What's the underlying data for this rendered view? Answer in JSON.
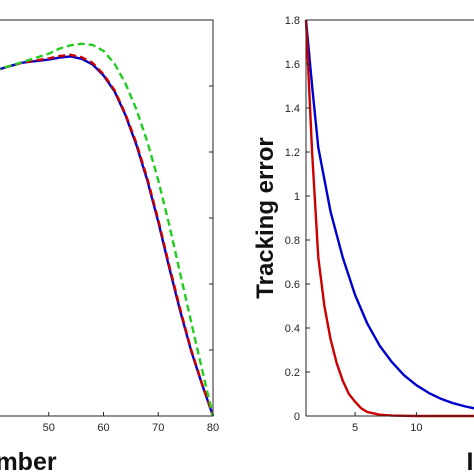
{
  "chart_data": [
    {
      "type": "line",
      "xlabel": "mber",
      "ylabel": "",
      "xlim": [
        40,
        80
      ],
      "ylim": [
        0,
        1
      ],
      "x_ticks": [
        "50",
        "60",
        "70",
        "80"
      ],
      "grid": false,
      "series": [
        {
          "color": "#0000cc",
          "style": "solid",
          "x": [
            40,
            45,
            50,
            52,
            54,
            56,
            58,
            60,
            62,
            64,
            66,
            68,
            70,
            72,
            74,
            76,
            78,
            80
          ],
          "y": [
            0.872,
            0.892,
            0.9,
            0.905,
            0.908,
            0.902,
            0.888,
            0.86,
            0.82,
            0.76,
            0.685,
            0.595,
            0.49,
            0.375,
            0.265,
            0.165,
            0.08,
            0.0
          ]
        },
        {
          "color": "#cc0000",
          "style": "dashed",
          "x": [
            40,
            45,
            50,
            52,
            54,
            56,
            58,
            60,
            62,
            64,
            66,
            68,
            70,
            72,
            74,
            76,
            78,
            80
          ],
          "y": [
            0.872,
            0.892,
            0.903,
            0.909,
            0.912,
            0.906,
            0.892,
            0.863,
            0.823,
            0.763,
            0.69,
            0.6,
            0.495,
            0.38,
            0.27,
            0.168,
            0.082,
            0.0
          ]
        },
        {
          "color": "#22cc22",
          "style": "dashed",
          "x": [
            40,
            45,
            50,
            52,
            54,
            56,
            58,
            60,
            62,
            64,
            66,
            68,
            70,
            72,
            74,
            76,
            78,
            80
          ],
          "y": [
            0.872,
            0.893,
            0.915,
            0.928,
            0.936,
            0.94,
            0.937,
            0.922,
            0.89,
            0.84,
            0.775,
            0.693,
            0.595,
            0.483,
            0.36,
            0.238,
            0.118,
            0.0
          ]
        }
      ]
    },
    {
      "type": "line",
      "xlabel": "I",
      "ylabel": "Tracking error",
      "xlim": [
        1,
        16
      ],
      "ylim": [
        0,
        1.8
      ],
      "x_ticks": [
        "5",
        "10"
      ],
      "y_ticks": [
        "0",
        "0.2",
        "0.4",
        "0.6",
        "0.8",
        "1",
        "1.2",
        "1.4",
        "1.6",
        "1.8"
      ],
      "grid": false,
      "series": [
        {
          "color": "#0000cc",
          "style": "solid",
          "x": [
            1,
            1.5,
            2,
            3,
            4,
            5,
            6,
            7,
            8,
            9,
            10,
            11,
            12,
            13,
            14,
            15,
            16
          ],
          "y": [
            1.8,
            1.5,
            1.22,
            0.93,
            0.72,
            0.55,
            0.42,
            0.32,
            0.245,
            0.185,
            0.14,
            0.105,
            0.078,
            0.058,
            0.043,
            0.032,
            0.024
          ]
        },
        {
          "color": "#cc0000",
          "style": "solid",
          "x": [
            1,
            1.5,
            2,
            2.5,
            3,
            3.5,
            4,
            4.5,
            5,
            5.5,
            6,
            7,
            8,
            10,
            12,
            14,
            16
          ],
          "y": [
            1.8,
            1.2,
            0.72,
            0.5,
            0.35,
            0.24,
            0.16,
            0.1,
            0.065,
            0.035,
            0.018,
            0.006,
            0.002,
            0.0,
            0.0,
            0.0,
            0.0
          ]
        }
      ]
    }
  ]
}
